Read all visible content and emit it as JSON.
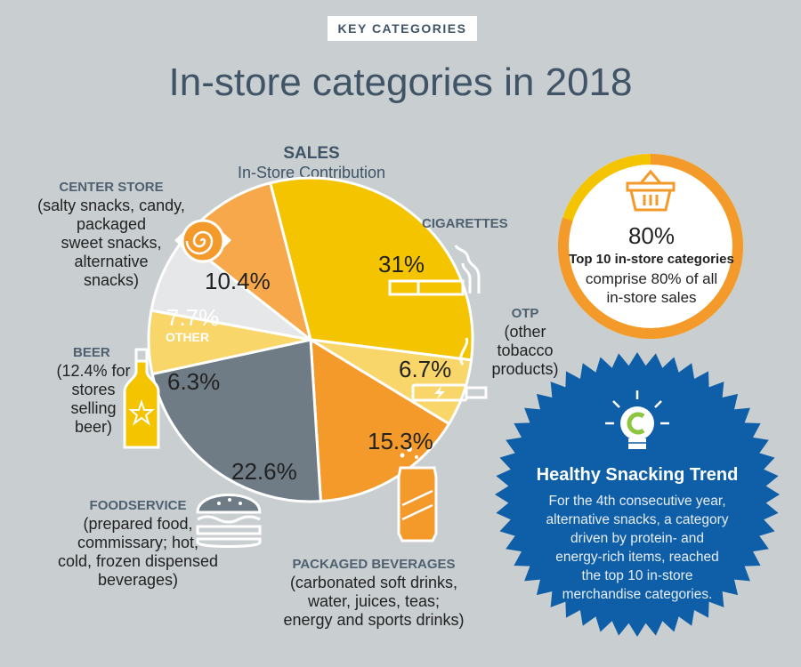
{
  "header": {
    "tag": "KEY CATEGORIES",
    "title": "In-store categories in 2018"
  },
  "chart_data": {
    "type": "pie",
    "title": "SALES",
    "subtitle": "In-Store Contribution",
    "slices": [
      {
        "key": "cigarettes",
        "value": 31,
        "label": "31%",
        "color": "#f5c400"
      },
      {
        "key": "otp",
        "value": 6.7,
        "label": "6.7%",
        "color": "#f9d66a"
      },
      {
        "key": "packaged_beverages",
        "value": 15.3,
        "label": "15.3%",
        "color": "#f39a2b"
      },
      {
        "key": "foodservice",
        "value": 22.6,
        "label": "22.6%",
        "color": "#6f7c86"
      },
      {
        "key": "beer",
        "value": 6.3,
        "label": "6.3%",
        "color": "#f9d66a"
      },
      {
        "key": "other",
        "value": 7.7,
        "label": "7.7%",
        "color": "#e6e7e8"
      },
      {
        "key": "center_store",
        "value": 10.4,
        "label": "10.4%",
        "color": "#f7a84a"
      }
    ]
  },
  "categories": {
    "center_store": {
      "name": "CENTER STORE",
      "desc": [
        "(salty snacks, candy,",
        "packaged",
        "sweet snacks,",
        "alternative",
        "snacks)"
      ]
    },
    "cigarettes": {
      "name": "CIGARETTES"
    },
    "otp": {
      "name": "OTP",
      "desc": [
        "(other",
        "tobacco",
        "products)"
      ]
    },
    "beer": {
      "name": "BEER",
      "desc": [
        "(12.4% for",
        "stores",
        "selling",
        "beer)"
      ]
    },
    "other": {
      "name": "OTHER"
    },
    "foodservice": {
      "name": "FOODSERVICE",
      "desc": [
        "(prepared food,",
        "commissary; hot,",
        "cold, frozen dispensed",
        "beverages)"
      ]
    },
    "packaged_beverages": {
      "name": "PACKAGED BEVERAGES",
      "desc": [
        "(carbonated soft drinks,",
        "water, juices, teas;",
        "energy and sports drinks)"
      ]
    }
  },
  "stat": {
    "percent": "80%",
    "bold": "Top 10 in-store categories",
    "desc": [
      "comprise 80% of all",
      "in-store sales"
    ],
    "ring_fill": 0.8
  },
  "trend": {
    "title": "Healthy Snacking Trend",
    "desc": [
      "For the 4th consecutive year,",
      "alternative snacks, a category",
      "driven by protein- and",
      "energy-rich items, reached",
      "the top 10 in-store",
      "merchandise categories."
    ]
  },
  "colors": {
    "background": "#c9ced1",
    "navy_text": "#3f5466",
    "orange": "#f39a2b",
    "yellow": "#f5c400",
    "blue_badge": "#0e5ea8"
  },
  "icons": [
    "candy-icon",
    "cigarette-icon",
    "e-cigarette-icon",
    "beer-bottle-icon",
    "burger-icon",
    "soda-can-icon",
    "basket-icon",
    "lightbulb-icon"
  ]
}
